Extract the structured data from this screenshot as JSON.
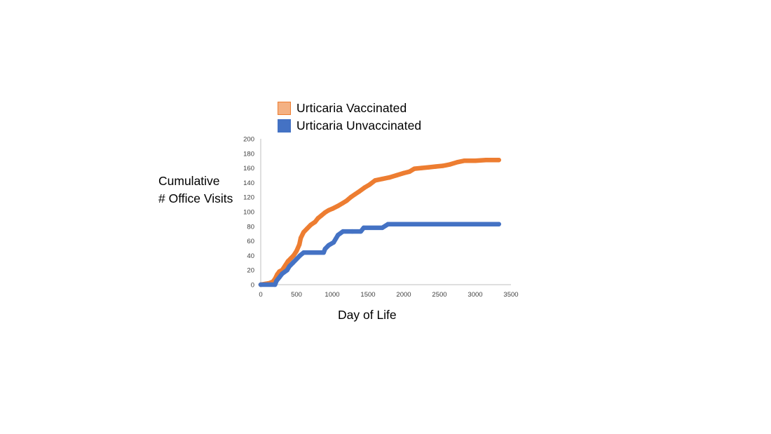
{
  "chart_data": {
    "type": "line",
    "title": "",
    "xlabel": "Day of Life",
    "ylabel_lines": [
      "Cumulative",
      "# Office Visits"
    ],
    "xlim": [
      0,
      3500
    ],
    "ylim": [
      0,
      200
    ],
    "x_ticks": [
      0,
      500,
      1000,
      1500,
      2000,
      2500,
      3000,
      3500
    ],
    "y_ticks": [
      0,
      20,
      40,
      60,
      80,
      100,
      120,
      140,
      160,
      180,
      200
    ],
    "grid": false,
    "legend_position": "top-left",
    "series": [
      {
        "name": "Urticaria Vaccinated",
        "color": "#ED7D31",
        "legend_color": "#F4B183",
        "points": [
          [
            0,
            0
          ],
          [
            60,
            1
          ],
          [
            120,
            2
          ],
          [
            170,
            4
          ],
          [
            200,
            8
          ],
          [
            230,
            14
          ],
          [
            260,
            18
          ],
          [
            300,
            20
          ],
          [
            340,
            26
          ],
          [
            380,
            32
          ],
          [
            420,
            36
          ],
          [
            460,
            40
          ],
          [
            500,
            46
          ],
          [
            540,
            55
          ],
          [
            560,
            64
          ],
          [
            600,
            72
          ],
          [
            650,
            77
          ],
          [
            700,
            82
          ],
          [
            760,
            86
          ],
          [
            800,
            91
          ],
          [
            850,
            95
          ],
          [
            900,
            99
          ],
          [
            950,
            102
          ],
          [
            1000,
            104
          ],
          [
            1080,
            108
          ],
          [
            1150,
            112
          ],
          [
            1200,
            115
          ],
          [
            1260,
            120
          ],
          [
            1320,
            124
          ],
          [
            1380,
            128
          ],
          [
            1450,
            133
          ],
          [
            1520,
            137
          ],
          [
            1600,
            143
          ],
          [
            1700,
            145
          ],
          [
            1800,
            147
          ],
          [
            1900,
            150
          ],
          [
            2000,
            153
          ],
          [
            2080,
            155
          ],
          [
            2150,
            159
          ],
          [
            2250,
            160
          ],
          [
            2350,
            161
          ],
          [
            2450,
            162
          ],
          [
            2550,
            163
          ],
          [
            2650,
            165
          ],
          [
            2750,
            168
          ],
          [
            2850,
            170
          ],
          [
            3000,
            170
          ],
          [
            3150,
            171
          ],
          [
            3330,
            171
          ]
        ]
      },
      {
        "name": "Urticaria Unvaccinated",
        "color": "#4472C4",
        "legend_color": "#4472C4",
        "points": [
          [
            0,
            0
          ],
          [
            200,
            0
          ],
          [
            220,
            5
          ],
          [
            260,
            10
          ],
          [
            300,
            15
          ],
          [
            370,
            20
          ],
          [
            400,
            25
          ],
          [
            450,
            30
          ],
          [
            500,
            35
          ],
          [
            550,
            40
          ],
          [
            600,
            44
          ],
          [
            700,
            44
          ],
          [
            880,
            44
          ],
          [
            900,
            49
          ],
          [
            950,
            54
          ],
          [
            1020,
            58
          ],
          [
            1050,
            63
          ],
          [
            1080,
            68
          ],
          [
            1150,
            73
          ],
          [
            1280,
            73
          ],
          [
            1400,
            73
          ],
          [
            1440,
            78
          ],
          [
            1700,
            78
          ],
          [
            1780,
            83
          ],
          [
            2000,
            83
          ],
          [
            2500,
            83
          ],
          [
            3000,
            83
          ],
          [
            3330,
            83
          ]
        ]
      }
    ]
  }
}
